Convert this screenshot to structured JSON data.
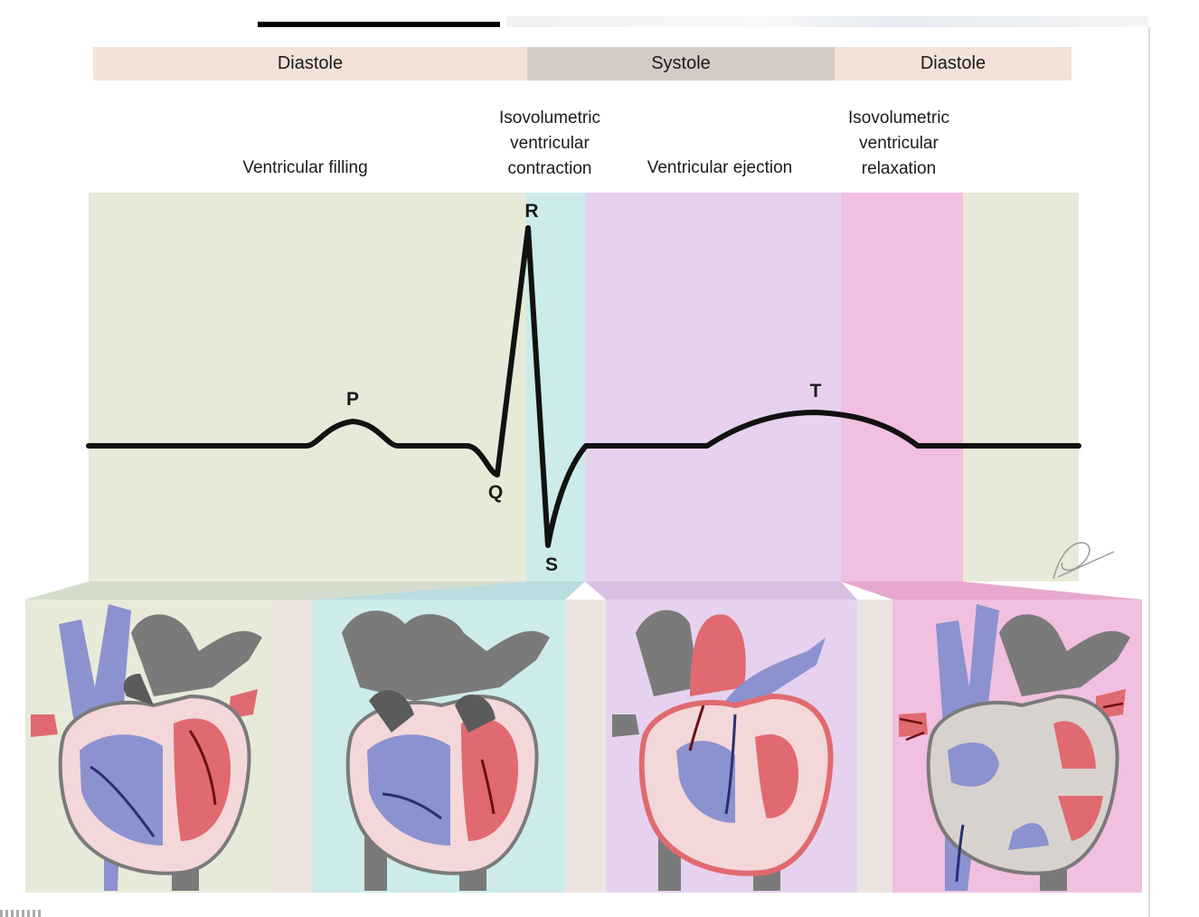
{
  "phases": [
    {
      "id": "diastole-left",
      "label": "Diastole"
    },
    {
      "id": "systole",
      "label": "Systole"
    },
    {
      "id": "diastole-right",
      "label": "Diastole"
    }
  ],
  "stages": [
    {
      "id": "ventricular-filling",
      "label": "Ventricular filling",
      "color": "#e8ead9"
    },
    {
      "id": "isovolumetric-contraction",
      "label": "Isovolumetric\nventricular\ncontraction",
      "color": "#cdebeb"
    },
    {
      "id": "ventricular-ejection",
      "label": "Ventricular ejection",
      "color": "#e6d2ee"
    },
    {
      "id": "isovolumetric-relaxation",
      "label": "Isovolumetric\nventricular\nrelaxation",
      "color": "#f1bfe0"
    }
  ],
  "ecg_waves": {
    "p": "P",
    "q": "Q",
    "r": "R",
    "s": "S",
    "t": "T"
  },
  "colors": {
    "oxygen_poor_blood": "#8b92cf",
    "oxygen_rich_blood": "#e06a70",
    "heart_wall": "#7a7a7a",
    "trace": "#111111"
  },
  "icons": [
    "heart-filling-illustration",
    "heart-contraction-illustration",
    "heart-ejection-illustration",
    "heart-relaxation-illustration",
    "signature-mark"
  ]
}
